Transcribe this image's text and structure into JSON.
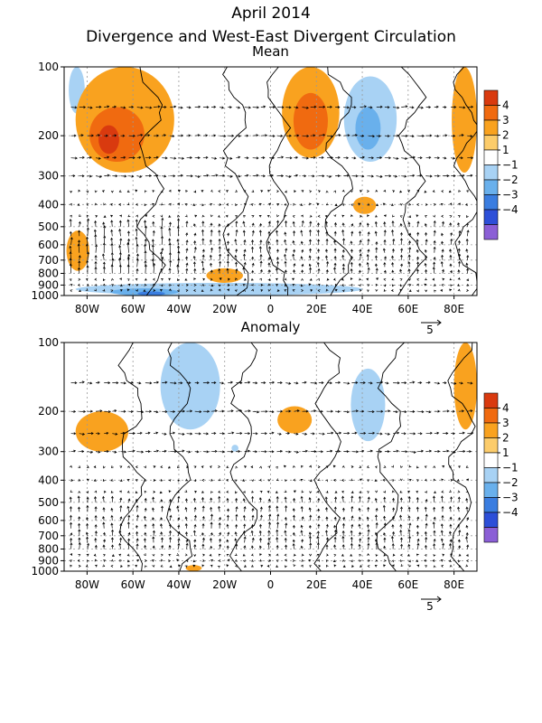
{
  "chart_data": {
    "title_line1": "April 2014",
    "title_line2": "Divergence and West-East Divergent Circulation",
    "type": "heatmap",
    "x_ticks": [
      "80W",
      "60W",
      "40W",
      "20W",
      "0",
      "20E",
      "40E",
      "60E",
      "80E"
    ],
    "x_tick_values": [
      -80,
      -60,
      -40,
      -20,
      0,
      20,
      40,
      60,
      80
    ],
    "xlim": [
      -90,
      90
    ],
    "y_ticks": [
      "100",
      "200",
      "300",
      "400",
      "500",
      "600",
      "700",
      "800",
      "900",
      "1000"
    ],
    "y_tick_values": [
      100,
      200,
      300,
      400,
      500,
      600,
      700,
      800,
      900,
      1000
    ],
    "ylim": [
      1000,
      100
    ],
    "y_scale": "log",
    "vector_reference": "5",
    "colorbar_labels": [
      "4",
      "3",
      "2",
      "1",
      "−1",
      "−2",
      "−3",
      "−4"
    ],
    "colorbar_colors": [
      "#d93a0f",
      "#f06a10",
      "#f9a21f",
      "#fccc6b",
      "#ffffff",
      "#a8d2f4",
      "#69b0ec",
      "#3a7de0",
      "#2d4fd8",
      "#8b5fd6"
    ],
    "panels": [
      {
        "name": "Mean",
        "regions": [
          {
            "lon": [
              -85,
              -42
            ],
            "p": [
              100,
              290
            ],
            "level": 2
          },
          {
            "lon": [
              -79,
              -55
            ],
            "p": [
              150,
              260
            ],
            "level": 3
          },
          {
            "lon": [
              -75,
              -66
            ],
            "p": [
              180,
              240
            ],
            "level": 4
          },
          {
            "lon": [
              5,
              30
            ],
            "p": [
              100,
              250
            ],
            "level": 2
          },
          {
            "lon": [
              10,
              25
            ],
            "p": [
              130,
              230
            ],
            "level": 3
          },
          {
            "lon": [
              79,
              90
            ],
            "p": [
              100,
              290
            ],
            "level": 2
          },
          {
            "lon": [
              32,
              55
            ],
            "p": [
              110,
              260
            ],
            "level": -1
          },
          {
            "lon": [
              37,
              48
            ],
            "p": [
              150,
              230
            ],
            "level": -2
          },
          {
            "lon": [
              -88,
              -81
            ],
            "p": [
              100,
              160
            ],
            "level": -1
          },
          {
            "lon": [
              -89,
              -79
            ],
            "p": [
              520,
              780
            ],
            "level": 2
          },
          {
            "lon": [
              -28,
              -12
            ],
            "p": [
              760,
              880
            ],
            "level": 2
          },
          {
            "lon": [
              36,
              46
            ],
            "p": [
              370,
              440
            ],
            "level": 2
          },
          {
            "lon": [
              -85,
              40
            ],
            "p": [
              880,
              1000
            ],
            "level": -1
          },
          {
            "lon": [
              -70,
              -40
            ],
            "p": [
              930,
              1000
            ],
            "level": -2
          },
          {
            "lon": [
              -58,
              -46
            ],
            "p": [
              960,
              1000
            ],
            "level": -3
          }
        ]
      },
      {
        "name": "Anomaly",
        "regions": [
          {
            "lon": [
              -48,
              -22
            ],
            "p": [
              100,
              240
            ],
            "level": -1
          },
          {
            "lon": [
              -85,
              -62
            ],
            "p": [
              200,
              300
            ],
            "level": 2
          },
          {
            "lon": [
              3,
              18
            ],
            "p": [
              190,
              250
            ],
            "level": 2
          },
          {
            "lon": [
              35,
              50
            ],
            "p": [
              130,
              270
            ],
            "level": -1
          },
          {
            "lon": [
              80,
              90
            ],
            "p": [
              100,
              240
            ],
            "level": 2
          },
          {
            "lon": [
              -37,
              -30
            ],
            "p": [
              940,
              1000
            ],
            "level": 2
          },
          {
            "lon": [
              -17,
              -14
            ],
            "p": [
              280,
              300
            ],
            "level": -1
          }
        ]
      }
    ]
  }
}
